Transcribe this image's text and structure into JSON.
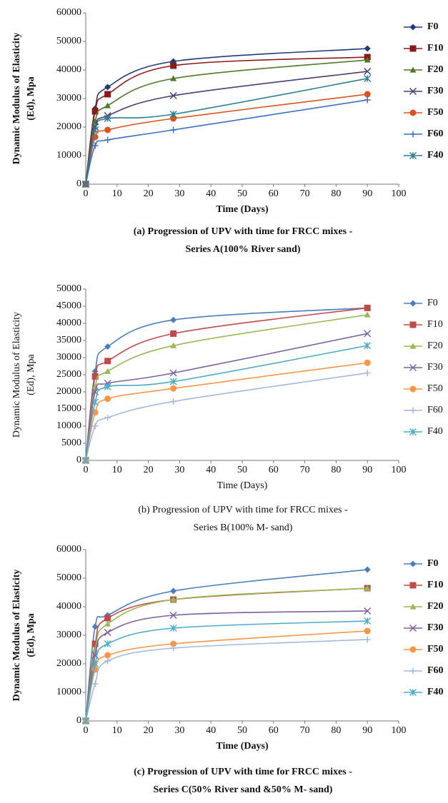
{
  "chart_data": [
    {
      "type": "line",
      "ylabel": [
        "Dynamic Modulus of Elasticity",
        "(Ed), Mpa"
      ],
      "xlabel": "Time (Days)",
      "caption": [
        "(a) Progression of UPV with time for FRCC mixes -",
        "Series A(100% River sand)"
      ],
      "x": [
        0,
        3,
        7,
        28,
        90
      ],
      "xlim": [
        0,
        100
      ],
      "xticks": [
        0,
        10,
        20,
        30,
        40,
        50,
        60,
        70,
        80,
        90,
        100
      ],
      "ylim": [
        0,
        60000
      ],
      "yticks": [
        0,
        10000,
        20000,
        30000,
        40000,
        50000,
        60000
      ],
      "grid": false,
      "legend": "right",
      "series": [
        {
          "name": "F0",
          "color": "#1f3a7a",
          "marker": "diamond",
          "values": [
            0,
            26500,
            34000,
            43000,
            47500
          ]
        },
        {
          "name": "F10",
          "color": "#8b1a1a",
          "marker": "square",
          "values": [
            0,
            25500,
            31500,
            41500,
            44500
          ]
        },
        {
          "name": "F20",
          "color": "#4f7a28",
          "marker": "triangle",
          "values": [
            0,
            22000,
            27500,
            37000,
            43500
          ]
        },
        {
          "name": "F30",
          "color": "#4e3a72",
          "marker": "x",
          "values": [
            0,
            20000,
            24000,
            31000,
            39500
          ]
        },
        {
          "name": "F50",
          "color": "#d9531e",
          "marker": "circle",
          "values": [
            0,
            16500,
            19000,
            23000,
            31500
          ]
        },
        {
          "name": "F60",
          "color": "#3b6fc4",
          "marker": "plus",
          "values": [
            0,
            13500,
            15500,
            19000,
            29500
          ]
        },
        {
          "name": "F40",
          "color": "#2a7f8f",
          "marker": "star",
          "values": [
            0,
            19000,
            23000,
            24500,
            37000
          ]
        }
      ]
    },
    {
      "type": "line",
      "ylabel": [
        "Dynamic Modulus of Elasticity",
        "(Ed), Mpa"
      ],
      "xlabel": "Time (Days)",
      "caption": [
        "(b) Progression of UPV with time for FRCC mixes -",
        "Series B(100% M- sand)"
      ],
      "x": [
        0,
        3,
        7,
        28,
        90
      ],
      "xlim": [
        0,
        100
      ],
      "xticks": [
        0,
        10,
        20,
        30,
        40,
        50,
        60,
        70,
        80,
        90,
        100
      ],
      "ylim": [
        0,
        50000
      ],
      "yticks": [
        0,
        5000,
        10000,
        15000,
        20000,
        25000,
        30000,
        35000,
        40000,
        45000,
        50000
      ],
      "grid": false,
      "legend": "right",
      "series": [
        {
          "name": "F0",
          "color": "#4a7ebb",
          "marker": "diamond",
          "values": [
            0,
            26000,
            33200,
            41000,
            44500
          ]
        },
        {
          "name": "F10",
          "color": "#be4b48",
          "marker": "square",
          "values": [
            0,
            24500,
            29000,
            37000,
            44500
          ]
        },
        {
          "name": "F20",
          "color": "#98b954",
          "marker": "triangle",
          "values": [
            0,
            21500,
            26000,
            33500,
            42500
          ]
        },
        {
          "name": "F30",
          "color": "#7d60a0",
          "marker": "x",
          "values": [
            0,
            20000,
            22500,
            25500,
            37000
          ]
        },
        {
          "name": "F50",
          "color": "#f79646",
          "marker": "circle",
          "values": [
            0,
            14000,
            18000,
            21000,
            28500
          ]
        },
        {
          "name": "F60",
          "color": "#a5b8dd",
          "marker": "plus",
          "values": [
            0,
            10000,
            12500,
            17200,
            25500
          ]
        },
        {
          "name": "F40",
          "color": "#4bacc6",
          "marker": "star",
          "values": [
            0,
            17000,
            21500,
            23000,
            33500
          ]
        }
      ]
    },
    {
      "type": "line",
      "ylabel": [
        "Dynamic Modulus of Elasticity",
        "(Ed), Mpa"
      ],
      "xlabel": "Time (Days)",
      "caption": [
        "(c) Progression of UPV with time for FRCC mixes -",
        "Series C(50% River sand &50% M- sand)"
      ],
      "x": [
        0,
        3,
        7,
        28,
        90
      ],
      "xlim": [
        0,
        100
      ],
      "xticks": [
        0,
        10,
        20,
        30,
        40,
        50,
        60,
        70,
        80,
        90,
        100
      ],
      "ylim": [
        0,
        60000
      ],
      "yticks": [
        0,
        10000,
        20000,
        30000,
        40000,
        50000,
        60000
      ],
      "grid": false,
      "legend": "right",
      "series": [
        {
          "name": "F0",
          "color": "#4a7ebb",
          "marker": "diamond",
          "values": [
            0,
            33000,
            37000,
            45500,
            53000
          ]
        },
        {
          "name": "F10",
          "color": "#be4b48",
          "marker": "square",
          "values": [
            0,
            27000,
            36000,
            42500,
            46500
          ]
        },
        {
          "name": "F20",
          "color": "#98b954",
          "marker": "triangle",
          "values": [
            0,
            25000,
            34000,
            42500,
            46500
          ]
        },
        {
          "name": "F30",
          "color": "#7d60a0",
          "marker": "x",
          "values": [
            0,
            23000,
            31000,
            37000,
            38500
          ]
        },
        {
          "name": "F50",
          "color": "#f79646",
          "marker": "circle",
          "values": [
            0,
            18000,
            23000,
            27000,
            31500
          ]
        },
        {
          "name": "F60",
          "color": "#a5b8dd",
          "marker": "plus",
          "values": [
            0,
            13000,
            21000,
            25500,
            28500
          ]
        },
        {
          "name": "F40",
          "color": "#4bacc6",
          "marker": "star",
          "values": [
            0,
            20000,
            27000,
            32500,
            35000
          ]
        }
      ]
    }
  ]
}
